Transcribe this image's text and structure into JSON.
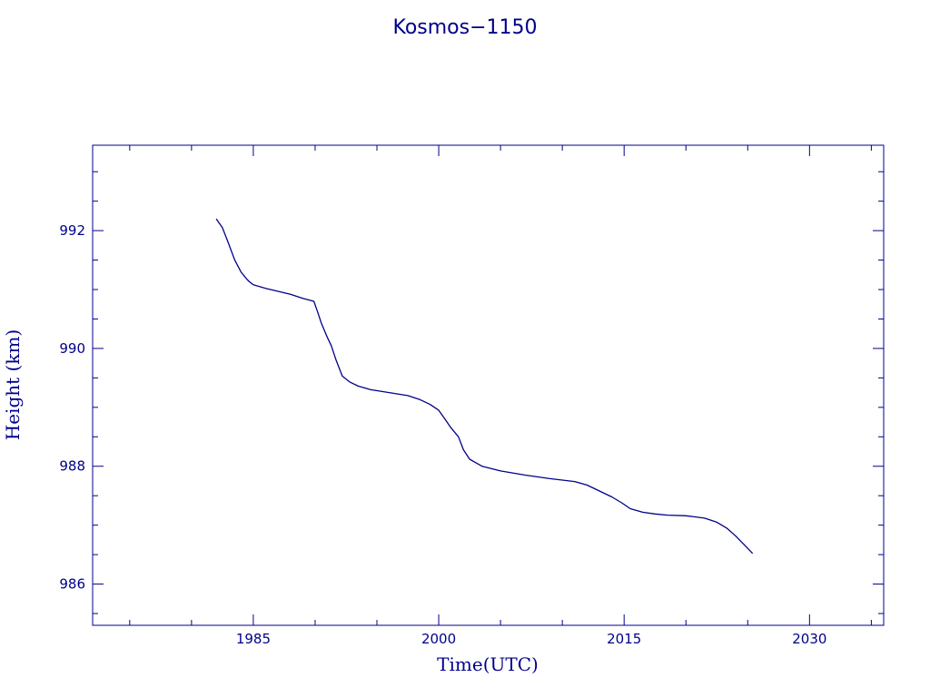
{
  "chart_data": {
    "type": "line",
    "title": "Kosmos−1150",
    "xlabel": "Time(UTC)",
    "ylabel": "Height (km)",
    "xlim": [
      1972,
      2036
    ],
    "ylim": [
      985.3,
      993.45
    ],
    "x_ticks": [
      1985,
      2000,
      2015,
      2030
    ],
    "y_ticks": [
      986,
      988,
      990,
      992
    ],
    "grid": false,
    "line_color": "#00008b",
    "axis_color": "#00008b",
    "series": [
      {
        "x": [
          1982.0,
          1982.5,
          1983.0,
          1983.5,
          1984.0,
          1984.3,
          1984.5,
          1984.7,
          1985.0,
          1986.0,
          1987.0,
          1988.0,
          1989.0,
          1989.9,
          1990.2,
          1990.5,
          1991.0,
          1991.3,
          1991.7,
          1992.2,
          1992.8,
          1993.5,
          1994.5,
          1996.0,
          1997.5,
          1998.5,
          1999.3,
          2000.0,
          2000.5,
          2001.0,
          2001.6,
          2002.0,
          2002.5,
          2003.5,
          2005.0,
          2007.0,
          2009.0,
          2011.0,
          2012.0,
          2013.0,
          2014.0,
          2014.8,
          2015.5,
          2016.5,
          2017.5,
          2018.5,
          2020.0,
          2021.5,
          2022.5,
          2023.3,
          2024.0,
          2024.8,
          2025.4
        ],
        "y": [
          992.2,
          992.05,
          991.78,
          991.5,
          991.3,
          991.22,
          991.17,
          991.13,
          991.08,
          991.02,
          990.97,
          990.92,
          990.85,
          990.8,
          990.62,
          990.43,
          990.18,
          990.05,
          989.8,
          989.53,
          989.43,
          989.36,
          989.3,
          989.25,
          989.2,
          989.13,
          989.05,
          988.95,
          988.8,
          988.65,
          988.5,
          988.28,
          988.12,
          988.0,
          987.92,
          987.85,
          987.79,
          987.74,
          987.68,
          987.58,
          987.48,
          987.38,
          987.28,
          987.22,
          987.19,
          987.17,
          987.16,
          987.12,
          987.05,
          986.95,
          986.82,
          986.65,
          986.52
        ]
      }
    ]
  }
}
